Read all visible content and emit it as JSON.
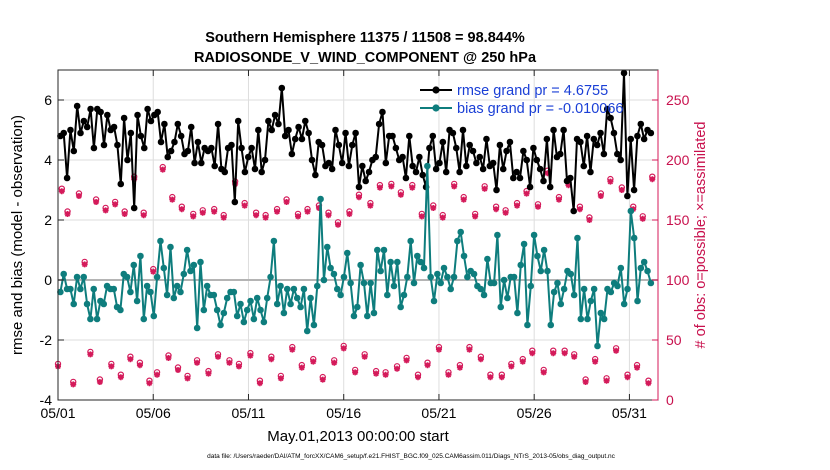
{
  "chart_data": {
    "type": "line",
    "title_line1": "Southern Hemisphere 11375 / 11508 = 98.844%",
    "title_line2": "RADIOSONDE_V_WIND_COMPONENT @ 250 hPa",
    "xlabel": "May.01,2013 00:00:00 start",
    "ylabel": "rmse and bias (model - observation)",
    "ylabel_right": "# of obs: o=possible; ×=assimilated",
    "footnote": "data file: /Users/raeder/DAI/ATM_forcXX/CAM6_setup/f.e21.FHIST_BGC.f09_025.CAM6assim.011/Diags_NTrS_2013-05/obs_diag_output.nc",
    "xlim": [
      0,
      31.5
    ],
    "ylim": [
      -4,
      7
    ],
    "ylim_right": [
      0,
      275
    ],
    "x_ticks": [
      0,
      5,
      10,
      15,
      20,
      25,
      30
    ],
    "x_tick_labels": [
      "05/01",
      "05/06",
      "05/11",
      "05/16",
      "05/21",
      "05/26",
      "05/31"
    ],
    "y_ticks": [
      -4,
      -2,
      0,
      2,
      4,
      6
    ],
    "y_tick_labels": [
      "-4",
      "-2",
      "0",
      "2",
      "4",
      "6"
    ],
    "y_right_ticks": [
      0,
      50,
      100,
      150,
      200,
      250
    ],
    "y_right_tick_labels": [
      "0",
      "50",
      "100",
      "150",
      "200",
      "250"
    ],
    "grid": true,
    "legend_position": "top-right",
    "colors": {
      "rmse": "#000000",
      "bias": "#0e7d7d",
      "obs": "#d41a5a",
      "zero_line": "#b4b4b4",
      "grid": "#dedede"
    },
    "legend": [
      "rmse grand pr = 4.6755",
      "bias grand pr = -0.010066"
    ],
    "series": [
      {
        "name": "rmse",
        "axis": "left",
        "values": [
          4.8,
          4.9,
          3.4,
          5.0,
          4.3,
          5.8,
          4.9,
          5.3,
          5.1,
          5.7,
          4.4,
          5.7,
          5.6,
          4.5,
          5.5,
          5.0,
          5.1,
          4.5,
          3.2,
          5.4,
          4.0,
          4.9,
          2.4,
          5.5,
          4.8,
          4.4,
          5.7,
          5.3,
          5.5,
          5.6,
          4.6,
          5.2,
          4.1,
          4.3,
          4.6,
          5.2,
          4.8,
          4.2,
          4.3,
          5.1,
          3.9,
          4.6,
          3.9,
          4.4,
          4.3,
          4.4,
          3.8,
          5.2,
          3.7,
          3.6,
          4.4,
          4.5,
          2.6,
          5.3,
          4.4,
          3.6,
          4.1,
          4.4,
          3.7,
          5.0,
          3.6,
          4.0,
          5.3,
          5.0,
          5.5,
          5.2,
          6.4,
          4.8,
          5.0,
          4.2,
          4.7,
          5.1,
          4.7,
          5.3,
          4.9,
          4.0,
          3.5,
          4.6,
          4.5,
          3.8,
          3.9,
          3.7,
          5.0,
          4.5,
          3.9,
          4.9,
          3.8,
          4.5,
          4.9,
          3.1,
          3.8,
          3.3,
          3.6,
          4.0,
          4.1,
          5.2,
          5.6,
          3.9,
          4.8,
          4.8,
          4.4,
          4.0,
          4.1,
          3.4,
          4.8,
          3.8,
          3.6,
          4.1,
          3.5,
          3.1,
          4.4,
          4.8,
          3.7,
          3.9,
          4.6,
          3.6,
          5.0,
          4.9,
          4.4,
          3.6,
          5.0,
          3.8,
          4.5,
          4.3,
          3.9,
          4.1,
          3.7,
          4.7,
          3.8,
          3.9,
          3.0,
          4.5,
          3.7,
          4.3,
          4.6,
          3.4,
          3.6,
          3.4,
          4.3,
          4.0,
          3.1,
          4.4,
          4.0,
          3.7,
          3.3,
          4.7,
          3.1,
          5.0,
          4.1,
          4.2,
          5.0,
          3.3,
          3.4,
          2.3,
          4.7,
          4.6,
          3.8,
          4.8,
          3.6,
          4.7,
          4.5,
          4.9,
          4.2,
          5.7,
          5.4,
          4.9,
          4.2,
          4.0,
          6.9,
          2.8,
          4.7,
          3.0,
          4.8,
          5.2,
          4.7,
          5.0,
          4.9
        ]
      },
      {
        "name": "bias",
        "axis": "left",
        "values": [
          -0.4,
          0.2,
          -0.3,
          -0.3,
          -0.8,
          0.1,
          -0.3,
          0.1,
          -0.8,
          -1.3,
          -0.3,
          -1.3,
          -0.7,
          -0.8,
          -0.2,
          -0.3,
          -0.3,
          -0.9,
          -1.0,
          0.2,
          0.1,
          -0.4,
          0.5,
          -0.7,
          0.8,
          -1.3,
          -0.2,
          -0.4,
          -1.2,
          0.1,
          1.3,
          0.4,
          -0.5,
          1.1,
          -0.6,
          -0.2,
          -0.4,
          0.2,
          1.0,
          0.3,
          0.5,
          -1.6,
          0.6,
          -1.0,
          -0.2,
          -0.5,
          -0.5,
          -1.0,
          -1.5,
          -1.1,
          -0.6,
          -0.4,
          -0.4,
          -1.2,
          -0.8,
          -1.4,
          -1.0,
          -0.7,
          -1.3,
          -0.6,
          -1.0,
          -1.4,
          -0.6,
          0.1,
          1.3,
          -0.8,
          -0.2,
          -1.1,
          -0.3,
          -0.8,
          -0.3,
          -0.6,
          -0.9,
          -0.3,
          -1.7,
          -0.6,
          -1.5,
          -0.2,
          2.7,
          0.0,
          1.1,
          0.4,
          0.2,
          -0.3,
          -0.5,
          0.1,
          0.9,
          -0.1,
          -1.2,
          -0.9,
          0.5,
          -0.1,
          -1.2,
          -0.1,
          -1.1,
          1.0,
          0.3,
          1.0,
          -0.5,
          0.6,
          -0.2,
          0.6,
          -0.9,
          -0.5,
          0.1,
          1.3,
          -0.1,
          0.8,
          0.6,
          0.4,
          3.8,
          0.1,
          -0.7,
          0.2,
          -0.1,
          0.4,
          0.1,
          -0.3,
          0.1,
          1.3,
          1.6,
          0.8,
          0.1,
          0.3,
          0.2,
          -0.2,
          -0.3,
          -0.5,
          0.7,
          -0.1,
          -0.1,
          1.5,
          -0.9,
          0.0,
          -0.6,
          0.1,
          0.1,
          -1.1,
          0.5,
          1.2,
          -1.5,
          -0.2,
          1.5,
          0.8,
          0.3,
          1.0,
          0.3,
          -1.5,
          -0.4,
          -0.1,
          -0.8,
          -0.3,
          0.3,
          0.2,
          -0.5,
          1.4,
          -1.3,
          -0.3,
          -1.3,
          -0.7,
          -0.3,
          -2.2,
          -1.1,
          -1.3,
          -0.3,
          -0.4,
          -0.1,
          -0.2,
          0.4,
          -0.8,
          -0.3,
          2.3,
          1.4,
          -0.7,
          0.4,
          0.6,
          0.3,
          -0.1
        ]
      }
    ],
    "obs_possible": [
      {
        "x": 0.0,
        "y": 28
      },
      {
        "x": 0.2,
        "y": 174
      },
      {
        "x": 0.5,
        "y": 155
      },
      {
        "x": 0.8,
        "y": 13
      },
      {
        "x": 1.1,
        "y": 170
      },
      {
        "x": 1.4,
        "y": 113
      },
      {
        "x": 1.7,
        "y": 38
      },
      {
        "x": 2.0,
        "y": 165
      },
      {
        "x": 2.2,
        "y": 15
      },
      {
        "x": 2.5,
        "y": 158
      },
      {
        "x": 2.8,
        "y": 28
      },
      {
        "x": 3.0,
        "y": 163
      },
      {
        "x": 3.3,
        "y": 19
      },
      {
        "x": 3.5,
        "y": 155
      },
      {
        "x": 3.8,
        "y": 34
      },
      {
        "x": 4.0,
        "y": 184
      },
      {
        "x": 4.3,
        "y": 29
      },
      {
        "x": 4.5,
        "y": 154
      },
      {
        "x": 4.8,
        "y": 14
      },
      {
        "x": 5.0,
        "y": 107
      },
      {
        "x": 5.2,
        "y": 21
      },
      {
        "x": 5.5,
        "y": 192
      },
      {
        "x": 5.8,
        "y": 35
      },
      {
        "x": 6.0,
        "y": 167
      },
      {
        "x": 6.3,
        "y": 25
      },
      {
        "x": 6.5,
        "y": 159
      },
      {
        "x": 6.8,
        "y": 18
      },
      {
        "x": 7.1,
        "y": 153
      },
      {
        "x": 7.3,
        "y": 31
      },
      {
        "x": 7.6,
        "y": 156
      },
      {
        "x": 7.9,
        "y": 22
      },
      {
        "x": 8.2,
        "y": 157
      },
      {
        "x": 8.4,
        "y": 36
      },
      {
        "x": 8.7,
        "y": 152
      },
      {
        "x": 9.0,
        "y": 31
      },
      {
        "x": 9.3,
        "y": 180
      },
      {
        "x": 9.5,
        "y": 28
      },
      {
        "x": 9.8,
        "y": 162
      },
      {
        "x": 10.1,
        "y": 37
      },
      {
        "x": 10.4,
        "y": 154
      },
      {
        "x": 10.6,
        "y": 14
      },
      {
        "x": 10.9,
        "y": 152
      },
      {
        "x": 11.2,
        "y": 34
      },
      {
        "x": 11.5,
        "y": 157
      },
      {
        "x": 11.7,
        "y": 18
      },
      {
        "x": 12.0,
        "y": 165
      },
      {
        "x": 12.3,
        "y": 42
      },
      {
        "x": 12.6,
        "y": 153
      },
      {
        "x": 12.8,
        "y": 27
      },
      {
        "x": 13.1,
        "y": 157
      },
      {
        "x": 13.4,
        "y": 32
      },
      {
        "x": 13.7,
        "y": 160
      },
      {
        "x": 13.9,
        "y": 17
      },
      {
        "x": 14.2,
        "y": 154
      },
      {
        "x": 14.5,
        "y": 31
      },
      {
        "x": 14.7,
        "y": 146
      },
      {
        "x": 15.0,
        "y": 43
      },
      {
        "x": 15.3,
        "y": 155
      },
      {
        "x": 15.6,
        "y": 23
      },
      {
        "x": 15.8,
        "y": 169
      },
      {
        "x": 16.1,
        "y": 36
      },
      {
        "x": 16.4,
        "y": 162
      },
      {
        "x": 16.7,
        "y": 22
      },
      {
        "x": 16.9,
        "y": 177
      },
      {
        "x": 17.2,
        "y": 21
      },
      {
        "x": 17.5,
        "y": 178
      },
      {
        "x": 17.8,
        "y": 26
      },
      {
        "x": 18.0,
        "y": 171
      },
      {
        "x": 18.3,
        "y": 33
      },
      {
        "x": 18.6,
        "y": 177
      },
      {
        "x": 18.9,
        "y": 19
      },
      {
        "x": 19.1,
        "y": 153
      },
      {
        "x": 19.4,
        "y": 29
      },
      {
        "x": 19.7,
        "y": 160
      },
      {
        "x": 20.0,
        "y": 42
      },
      {
        "x": 20.2,
        "y": 152
      },
      {
        "x": 20.5,
        "y": 21
      },
      {
        "x": 20.8,
        "y": 178
      },
      {
        "x": 21.1,
        "y": 27
      },
      {
        "x": 21.3,
        "y": 167
      },
      {
        "x": 21.6,
        "y": 42
      },
      {
        "x": 21.9,
        "y": 153
      },
      {
        "x": 22.2,
        "y": 34
      },
      {
        "x": 22.4,
        "y": 176
      },
      {
        "x": 22.7,
        "y": 19
      },
      {
        "x": 23.0,
        "y": 159
      },
      {
        "x": 23.3,
        "y": 19
      },
      {
        "x": 23.5,
        "y": 156
      },
      {
        "x": 23.8,
        "y": 28
      },
      {
        "x": 24.1,
        "y": 162
      },
      {
        "x": 24.4,
        "y": 32
      },
      {
        "x": 24.6,
        "y": 172
      },
      {
        "x": 24.9,
        "y": 39
      },
      {
        "x": 25.2,
        "y": 161
      },
      {
        "x": 25.5,
        "y": 23
      },
      {
        "x": 25.7,
        "y": 189
      },
      {
        "x": 26.0,
        "y": 39
      },
      {
        "x": 26.3,
        "y": 167
      },
      {
        "x": 26.6,
        "y": 39
      },
      {
        "x": 26.8,
        "y": 179
      },
      {
        "x": 27.1,
        "y": 36
      },
      {
        "x": 27.4,
        "y": 159
      },
      {
        "x": 27.7,
        "y": 15
      },
      {
        "x": 27.9,
        "y": 150
      },
      {
        "x": 28.2,
        "y": 32
      },
      {
        "x": 28.5,
        "y": 170
      },
      {
        "x": 28.8,
        "y": 16
      },
      {
        "x": 29.0,
        "y": 182
      },
      {
        "x": 29.3,
        "y": 41
      },
      {
        "x": 29.6,
        "y": 175
      },
      {
        "x": 29.9,
        "y": 19
      },
      {
        "x": 30.2,
        "y": 159
      },
      {
        "x": 30.4,
        "y": 27
      },
      {
        "x": 30.7,
        "y": 151
      },
      {
        "x": 31.0,
        "y": 14
      },
      {
        "x": 31.2,
        "y": 184
      }
    ],
    "obs_assimilated": [
      {
        "x": 0.0,
        "y": 28
      },
      {
        "x": 0.2,
        "y": 174
      },
      {
        "x": 0.5,
        "y": 155
      },
      {
        "x": 0.8,
        "y": 13
      },
      {
        "x": 1.1,
        "y": 170
      },
      {
        "x": 1.4,
        "y": 113
      },
      {
        "x": 1.7,
        "y": 38
      },
      {
        "x": 2.0,
        "y": 165
      },
      {
        "x": 2.2,
        "y": 15
      },
      {
        "x": 2.5,
        "y": 158
      },
      {
        "x": 2.8,
        "y": 28
      },
      {
        "x": 3.0,
        "y": 163
      },
      {
        "x": 3.3,
        "y": 19
      },
      {
        "x": 3.5,
        "y": 155
      },
      {
        "x": 3.8,
        "y": 34
      },
      {
        "x": 4.0,
        "y": 184
      },
      {
        "x": 4.3,
        "y": 29
      },
      {
        "x": 4.5,
        "y": 154
      },
      {
        "x": 4.8,
        "y": 14
      },
      {
        "x": 5.0,
        "y": 107
      },
      {
        "x": 5.2,
        "y": 21
      },
      {
        "x": 5.5,
        "y": 192
      },
      {
        "x": 5.8,
        "y": 35
      },
      {
        "x": 6.0,
        "y": 167
      },
      {
        "x": 6.3,
        "y": 25
      },
      {
        "x": 6.5,
        "y": 159
      },
      {
        "x": 6.8,
        "y": 18
      },
      {
        "x": 7.1,
        "y": 153
      },
      {
        "x": 7.3,
        "y": 31
      },
      {
        "x": 7.6,
        "y": 156
      },
      {
        "x": 7.9,
        "y": 22
      },
      {
        "x": 8.2,
        "y": 157
      },
      {
        "x": 8.4,
        "y": 36
      },
      {
        "x": 8.7,
        "y": 152
      },
      {
        "x": 9.0,
        "y": 31
      },
      {
        "x": 9.3,
        "y": 180
      },
      {
        "x": 9.5,
        "y": 28
      },
      {
        "x": 9.8,
        "y": 162
      },
      {
        "x": 10.1,
        "y": 37
      },
      {
        "x": 10.4,
        "y": 154
      },
      {
        "x": 10.6,
        "y": 14
      },
      {
        "x": 10.9,
        "y": 152
      },
      {
        "x": 11.2,
        "y": 34
      },
      {
        "x": 11.5,
        "y": 157
      },
      {
        "x": 11.7,
        "y": 18
      },
      {
        "x": 12.0,
        "y": 165
      },
      {
        "x": 12.3,
        "y": 42
      },
      {
        "x": 12.6,
        "y": 153
      },
      {
        "x": 12.8,
        "y": 27
      },
      {
        "x": 13.1,
        "y": 157
      },
      {
        "x": 13.4,
        "y": 32
      },
      {
        "x": 13.7,
        "y": 160
      },
      {
        "x": 13.9,
        "y": 17
      },
      {
        "x": 14.2,
        "y": 154
      },
      {
        "x": 14.5,
        "y": 31
      },
      {
        "x": 14.7,
        "y": 146
      },
      {
        "x": 15.0,
        "y": 43
      },
      {
        "x": 15.3,
        "y": 155
      },
      {
        "x": 15.6,
        "y": 23
      },
      {
        "x": 15.8,
        "y": 169
      },
      {
        "x": 16.1,
        "y": 36
      },
      {
        "x": 16.4,
        "y": 162
      },
      {
        "x": 16.7,
        "y": 22
      },
      {
        "x": 16.9,
        "y": 177
      },
      {
        "x": 17.2,
        "y": 21
      },
      {
        "x": 17.5,
        "y": 178
      },
      {
        "x": 17.8,
        "y": 26
      },
      {
        "x": 18.0,
        "y": 171
      },
      {
        "x": 18.3,
        "y": 33
      },
      {
        "x": 18.6,
        "y": 177
      },
      {
        "x": 18.9,
        "y": 19
      },
      {
        "x": 19.1,
        "y": 153
      },
      {
        "x": 19.4,
        "y": 29
      },
      {
        "x": 19.7,
        "y": 160
      },
      {
        "x": 20.0,
        "y": 42
      },
      {
        "x": 20.2,
        "y": 152
      },
      {
        "x": 20.5,
        "y": 21
      },
      {
        "x": 20.8,
        "y": 178
      },
      {
        "x": 21.1,
        "y": 27
      },
      {
        "x": 21.3,
        "y": 167
      },
      {
        "x": 21.6,
        "y": 42
      },
      {
        "x": 21.9,
        "y": 153
      },
      {
        "x": 22.2,
        "y": 34
      },
      {
        "x": 22.4,
        "y": 176
      },
      {
        "x": 22.7,
        "y": 19
      },
      {
        "x": 23.0,
        "y": 159
      },
      {
        "x": 23.3,
        "y": 19
      },
      {
        "x": 23.5,
        "y": 156
      },
      {
        "x": 23.8,
        "y": 28
      },
      {
        "x": 24.1,
        "y": 162
      },
      {
        "x": 24.4,
        "y": 32
      },
      {
        "x": 24.6,
        "y": 172
      },
      {
        "x": 24.9,
        "y": 39
      },
      {
        "x": 25.2,
        "y": 161
      },
      {
        "x": 25.5,
        "y": 23
      },
      {
        "x": 25.7,
        "y": 189
      },
      {
        "x": 26.0,
        "y": 39
      },
      {
        "x": 26.3,
        "y": 167
      },
      {
        "x": 26.6,
        "y": 39
      },
      {
        "x": 26.8,
        "y": 179
      },
      {
        "x": 27.1,
        "y": 36
      },
      {
        "x": 27.4,
        "y": 159
      },
      {
        "x": 27.7,
        "y": 15
      },
      {
        "x": 27.9,
        "y": 150
      },
      {
        "x": 28.2,
        "y": 32
      },
      {
        "x": 28.5,
        "y": 170
      },
      {
        "x": 28.8,
        "y": 16
      },
      {
        "x": 29.0,
        "y": 182
      },
      {
        "x": 29.3,
        "y": 41
      },
      {
        "x": 29.6,
        "y": 175
      },
      {
        "x": 29.9,
        "y": 19
      },
      {
        "x": 30.2,
        "y": 159
      },
      {
        "x": 30.4,
        "y": 27
      },
      {
        "x": 30.7,
        "y": 151
      },
      {
        "x": 31.0,
        "y": 14
      },
      {
        "x": 31.2,
        "y": 184
      }
    ]
  }
}
